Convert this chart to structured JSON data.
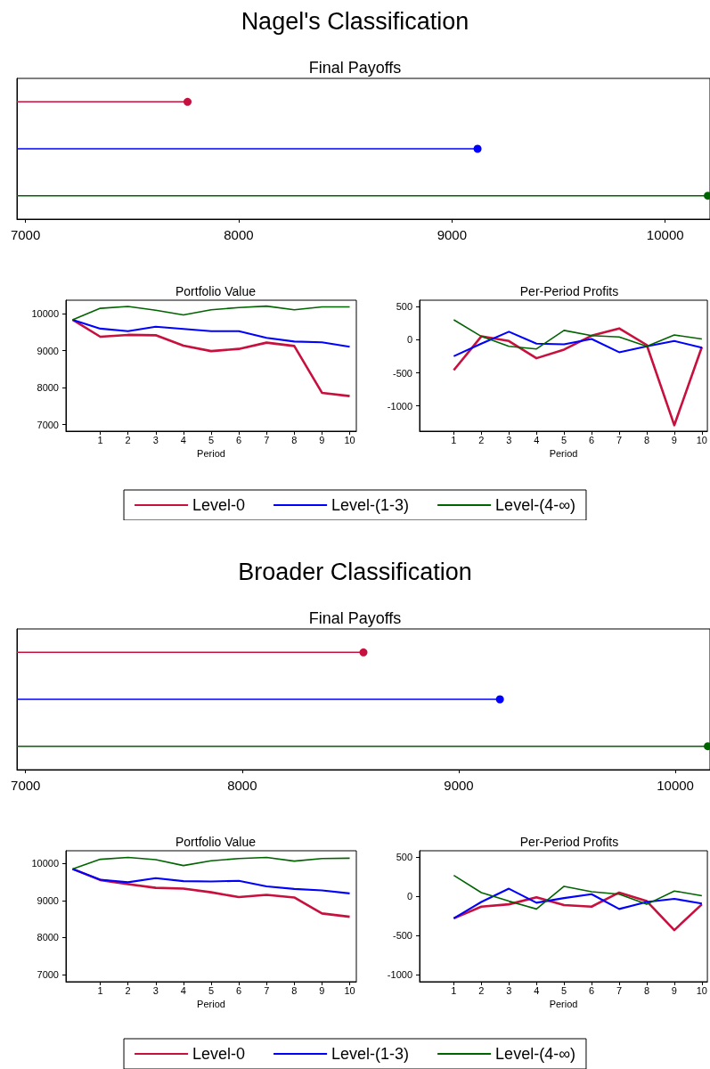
{
  "chart_data": [
    {
      "type": "lollipop",
      "orientation": "horizontal",
      "title": "Nagel's Classification",
      "subtitle": "Final Payoffs",
      "categories": [
        null,
        null,
        null
      ],
      "xlim": [
        6960,
        10210
      ],
      "xticks": [
        7000,
        8000,
        9000,
        10000
      ],
      "legend": "bottom",
      "marker": "circle",
      "series": [
        {
          "name": "Level-0",
          "color": "#c8103e",
          "values": [
            7760,
            null,
            null
          ]
        },
        {
          "name": "Level-(1-3)",
          "color": "#0000ff",
          "values": [
            null,
            9120,
            null
          ]
        },
        {
          "name": "Level-(4-∞)",
          "color": "#006400",
          "values": [
            null,
            null,
            10200
          ]
        }
      ]
    },
    {
      "type": "line",
      "title": "Portfolio Value",
      "xlabel": "Period",
      "x": [
        0,
        1,
        2,
        3,
        4,
        5,
        6,
        7,
        8,
        9,
        10
      ],
      "xlim": [
        -0.24,
        10.24
      ],
      "xticks": [
        1,
        2,
        3,
        4,
        5,
        6,
        7,
        8,
        9,
        10
      ],
      "ylim": [
        6820,
        10370
      ],
      "yticks": [
        7000,
        8000,
        9000,
        10000
      ],
      "marker": "none",
      "series": [
        {
          "color": "#c8103e",
          "values": [
            9840,
            9380,
            9430,
            9420,
            9140,
            8990,
            9050,
            9220,
            9130,
            7860,
            7770
          ]
        },
        {
          "color": "#0000ff",
          "values": [
            9840,
            9600,
            9530,
            9650,
            9590,
            9530,
            9530,
            9350,
            9250,
            9230,
            9110
          ]
        },
        {
          "color": "#006400",
          "values": [
            9840,
            10150,
            10200,
            10100,
            9970,
            10110,
            10170,
            10210,
            10110,
            10190,
            10190
          ]
        }
      ]
    },
    {
      "type": "line",
      "title": "Per-Period Profits",
      "xlabel": "Period",
      "x": [
        1,
        2,
        3,
        4,
        5,
        6,
        7,
        8,
        9,
        10
      ],
      "xlim": [
        -0.24,
        10.2
      ],
      "xticks": [
        1,
        2,
        3,
        4,
        5,
        6,
        7,
        8,
        9,
        10
      ],
      "ylim": [
        -1380,
        595
      ],
      "yticks": [
        -1000,
        -500,
        0,
        500
      ],
      "marker": "none",
      "series": [
        {
          "color": "#c8103e",
          "values": [
            -460,
            50,
            -20,
            -280,
            -150,
            60,
            170,
            -80,
            -1290,
            -110
          ]
        },
        {
          "color": "#0000ff",
          "values": [
            -250,
            -60,
            120,
            -60,
            -70,
            10,
            -190,
            -100,
            -20,
            -120
          ]
        },
        {
          "color": "#006400",
          "values": [
            300,
            50,
            -100,
            -140,
            140,
            60,
            40,
            -100,
            70,
            10
          ]
        }
      ]
    },
    {
      "type": "lollipop",
      "orientation": "horizontal",
      "title": "Broader Classification",
      "subtitle": "Final Payoffs",
      "categories": [
        null,
        null,
        null
      ],
      "xlim": [
        6960,
        10160
      ],
      "xticks": [
        7000,
        8000,
        9000,
        10000
      ],
      "legend": "bottom",
      "marker": "circle",
      "series": [
        {
          "name": "Level-0",
          "color": "#c8103e",
          "values": [
            8560,
            null,
            null
          ]
        },
        {
          "name": "Level-(1-3)",
          "color": "#0000ff",
          "values": [
            null,
            9190,
            null
          ]
        },
        {
          "name": "Level-(4-∞)",
          "color": "#006400",
          "values": [
            null,
            null,
            10150
          ]
        }
      ]
    },
    {
      "type": "line",
      "title": "Portfolio Value",
      "xlabel": "Period",
      "x": [
        0,
        1,
        2,
        3,
        4,
        5,
        6,
        7,
        8,
        9,
        10
      ],
      "xlim": [
        -0.24,
        10.24
      ],
      "xticks": [
        1,
        2,
        3,
        4,
        5,
        6,
        7,
        8,
        9,
        10
      ],
      "ylim": [
        6810,
        10340
      ],
      "yticks": [
        7000,
        8000,
        9000,
        10000
      ],
      "marker": "none",
      "series": [
        {
          "color": "#c8103e",
          "values": [
            9850,
            9550,
            9440,
            9340,
            9320,
            9220,
            9090,
            9150,
            9080,
            8650,
            8560
          ]
        },
        {
          "color": "#0000ff",
          "values": [
            9850,
            9560,
            9490,
            9600,
            9520,
            9510,
            9530,
            9380,
            9310,
            9270,
            9190
          ]
        },
        {
          "color": "#006400",
          "values": [
            9850,
            10110,
            10160,
            10100,
            9940,
            10070,
            10130,
            10160,
            10060,
            10130,
            10140
          ]
        }
      ]
    },
    {
      "type": "line",
      "title": "Per-Period Profits",
      "xlabel": "Period",
      "x": [
        1,
        2,
        3,
        4,
        5,
        6,
        7,
        8,
        9,
        10
      ],
      "xlim": [
        -0.24,
        10.2
      ],
      "xticks": [
        1,
        2,
        3,
        4,
        5,
        6,
        7,
        8,
        9,
        10
      ],
      "ylim": [
        -1090,
        585
      ],
      "yticks": [
        -1000,
        -500,
        0,
        500
      ],
      "marker": "none",
      "series": [
        {
          "color": "#c8103e",
          "values": [
            -280,
            -130,
            -100,
            -10,
            -110,
            -130,
            50,
            -60,
            -430,
            -100
          ]
        },
        {
          "color": "#0000ff",
          "values": [
            -280,
            -70,
            100,
            -80,
            -20,
            30,
            -160,
            -70,
            -30,
            -90
          ]
        },
        {
          "color": "#006400",
          "values": [
            270,
            50,
            -60,
            -160,
            130,
            60,
            30,
            -100,
            70,
            10
          ]
        }
      ]
    }
  ]
}
